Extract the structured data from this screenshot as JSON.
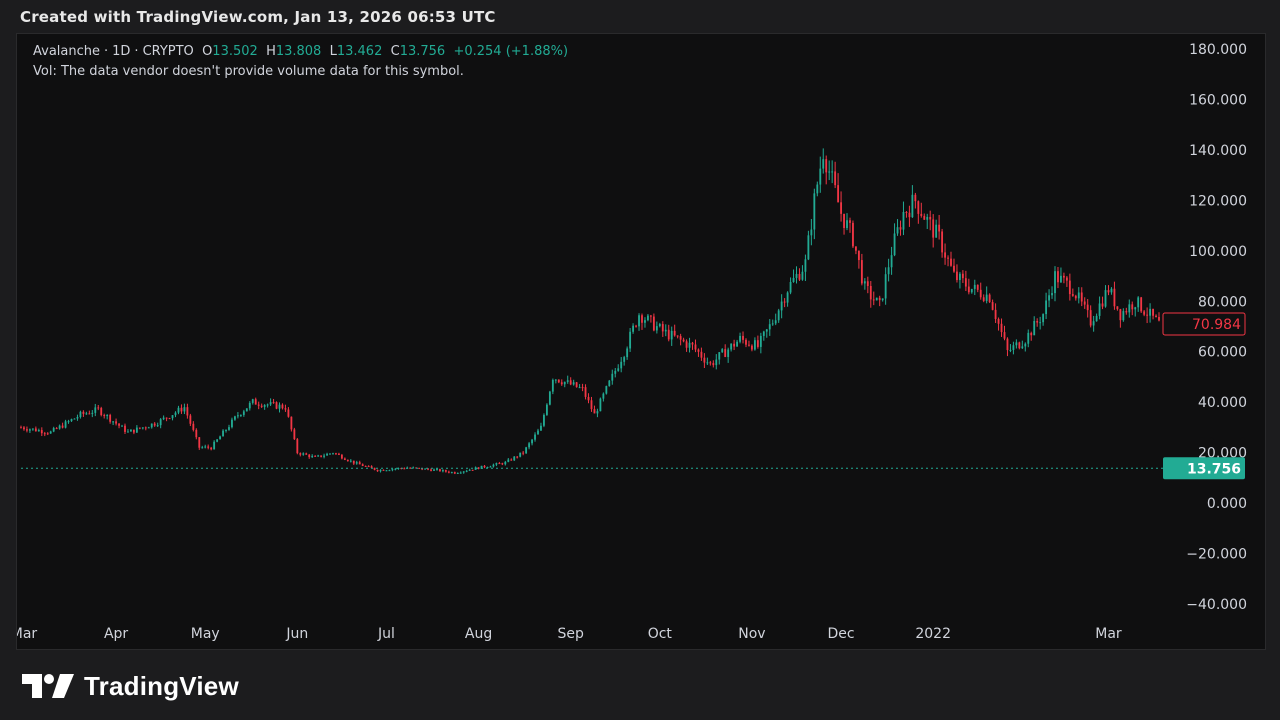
{
  "header": {
    "created_text": "Created with TradingView.com, Jan 13, 2026 06:53 UTC"
  },
  "legend": {
    "symbol": "Avalanche",
    "interval": "1D",
    "exchange": "CRYPTO",
    "o_label": "O",
    "o_value": "13.502",
    "h_label": "H",
    "h_value": "13.808",
    "l_label": "L",
    "l_value": "13.462",
    "c_label": "C",
    "c_value": "13.756",
    "change": "+0.254 (+1.88%)",
    "vol_text": "Vol: The data vendor doesn't provide volume data for this symbol."
  },
  "badges": {
    "last_close": "70.984",
    "current_price": "13.756"
  },
  "footer": {
    "logo_text": "TradingView"
  },
  "colors": {
    "up": "#22ab94",
    "down": "#f23645",
    "background": "#0f0f10",
    "axis_text": "#d1d4dc"
  },
  "chart_data": {
    "type": "candlestick",
    "y_ticks": [
      "180.000",
      "160.000",
      "140.000",
      "120.000",
      "100.000",
      "80.000",
      "60.000",
      "40.000",
      "20.000",
      "0.000",
      "−20.000",
      "−40.000"
    ],
    "y_tick_values": [
      180,
      160,
      140,
      120,
      100,
      80,
      60,
      40,
      20,
      0,
      -20,
      -40
    ],
    "ylim": [
      -48,
      186
    ],
    "x_ticks": [
      "Mar",
      "Apr",
      "May",
      "Jun",
      "Jul",
      "Aug",
      "Sep",
      "Oct",
      "Nov",
      "Dec",
      "2022",
      "Mar"
    ],
    "x_tick_dates": [
      "2021-03-01",
      "2021-04-01",
      "2021-05-01",
      "2021-06-01",
      "2021-07-01",
      "2021-08-01",
      "2021-09-01",
      "2021-10-01",
      "2021-11-01",
      "2021-12-01",
      "2022-01-01",
      "2022-03-01"
    ],
    "x_range": [
      "2021-02-28",
      "2022-03-18"
    ],
    "price_line": 13.756,
    "close_series": [
      [
        "2021-02-28",
        30
      ],
      [
        "2021-03-10",
        28
      ],
      [
        "2021-03-20",
        35
      ],
      [
        "2021-03-26",
        37
      ],
      [
        "2021-04-05",
        28
      ],
      [
        "2021-04-15",
        32
      ],
      [
        "2021-04-24",
        38
      ],
      [
        "2021-04-29",
        22
      ],
      [
        "2021-05-03",
        22
      ],
      [
        "2021-05-12",
        35
      ],
      [
        "2021-05-17",
        40
      ],
      [
        "2021-05-28",
        38
      ],
      [
        "2021-06-01",
        20
      ],
      [
        "2021-06-07",
        18
      ],
      [
        "2021-06-13",
        20
      ],
      [
        "2021-06-20",
        16
      ],
      [
        "2021-06-28",
        13
      ],
      [
        "2021-07-08",
        14
      ],
      [
        "2021-07-18",
        13
      ],
      [
        "2021-07-24",
        12
      ],
      [
        "2021-08-01",
        14
      ],
      [
        "2021-08-10",
        16
      ],
      [
        "2021-08-16",
        20
      ],
      [
        "2021-08-22",
        30
      ],
      [
        "2021-08-26",
        50
      ],
      [
        "2021-09-05",
        45
      ],
      [
        "2021-09-09",
        35
      ],
      [
        "2021-09-15",
        50
      ],
      [
        "2021-09-19",
        60
      ],
      [
        "2021-09-24",
        75
      ],
      [
        "2021-10-02",
        68
      ],
      [
        "2021-10-12",
        62
      ],
      [
        "2021-10-18",
        55
      ],
      [
        "2021-10-28",
        65
      ],
      [
        "2021-11-03",
        62
      ],
      [
        "2021-11-08",
        72
      ],
      [
        "2021-11-13",
        85
      ],
      [
        "2021-11-19",
        95
      ],
      [
        "2021-11-22",
        120
      ],
      [
        "2021-11-25",
        140
      ],
      [
        "2021-12-01",
        115
      ],
      [
        "2021-12-05",
        105
      ],
      [
        "2021-12-09",
        85
      ],
      [
        "2021-12-14",
        78
      ],
      [
        "2021-12-18",
        100
      ],
      [
        "2021-12-22",
        115
      ],
      [
        "2021-12-26",
        120
      ],
      [
        "2021-12-31",
        110
      ],
      [
        "2022-01-03",
        105
      ],
      [
        "2022-01-08",
        90
      ],
      [
        "2022-01-14",
        85
      ],
      [
        "2022-01-20",
        82
      ],
      [
        "2022-01-26",
        60
      ],
      [
        "2022-02-01",
        65
      ],
      [
        "2022-02-07",
        75
      ],
      [
        "2022-02-11",
        90
      ],
      [
        "2022-02-17",
        85
      ],
      [
        "2022-02-23",
        72
      ],
      [
        "2022-03-01",
        85
      ],
      [
        "2022-03-05",
        75
      ],
      [
        "2022-03-10",
        80
      ],
      [
        "2022-03-18",
        70.984
      ]
    ]
  }
}
